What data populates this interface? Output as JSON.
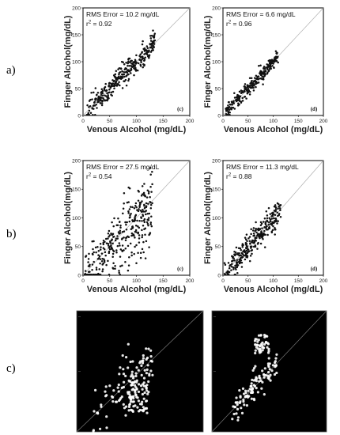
{
  "row_labels": [
    "a)",
    "b)",
    "c)"
  ],
  "colors": {
    "frame": "#000000",
    "marker": "#111111",
    "diagonal": "#b0b0b0",
    "dark_bg": "#000000",
    "dark_marker": "#ffffff"
  },
  "chart_data": [
    {
      "type": "scatter",
      "row": "a)",
      "panel_label": "(c)",
      "xlabel": "Venous Alcohol (mg/dL)",
      "ylabel": "Finger Alcohol(mg/dL)",
      "xlim": [
        0,
        200
      ],
      "ylim": [
        0,
        200
      ],
      "xticks": [
        "0",
        "50",
        "100",
        "150",
        "200"
      ],
      "yticks": [
        "0",
        "50",
        "100",
        "150",
        "200"
      ],
      "rms_label": "RMS Error = 10.2 mg/dL",
      "r_label": "r",
      "r_sup": "2",
      "r_value": " = 0.92",
      "reference_line": "y = x",
      "point_count": 320,
      "x_range": [
        5,
        135
      ],
      "spread": 10
    },
    {
      "type": "scatter",
      "row": "a)",
      "panel_label": "(d)",
      "xlabel": "Venous Alcohol (mg/dL)",
      "ylabel": "Finger Alcohol(mg/dL)",
      "xlim": [
        0,
        200
      ],
      "ylim": [
        0,
        200
      ],
      "xticks": [
        "0",
        "50",
        "100",
        "150",
        "200"
      ],
      "yticks": [
        "0",
        "50",
        "100",
        "150",
        "200"
      ],
      "rms_label": "RMS Error = 6.6 mg/dL",
      "r_label": "r",
      "r_sup": "2",
      "r_value": " = 0.96",
      "reference_line": "y = x",
      "point_count": 260,
      "x_range": [
        5,
        110
      ],
      "spread": 6.5
    },
    {
      "type": "scatter",
      "row": "b)",
      "panel_label": "(c)",
      "xlabel": "Venous Alcohol (mg/dL)",
      "ylabel": "Finger Alcohol(mg/dL)",
      "xlim": [
        0,
        200
      ],
      "ylim": [
        0,
        200
      ],
      "xticks": [
        "0",
        "50",
        "100",
        "150",
        "200"
      ],
      "yticks": [
        "0",
        "50",
        "100",
        "150",
        "200"
      ],
      "rms_label": "RMS Error = 27.5 mg/dL",
      "r_label": "r",
      "r_sup": "2",
      "r_value": " = 0.54",
      "reference_line": "y = x",
      "point_count": 340,
      "x_range": [
        3,
        130
      ],
      "spread": 26
    },
    {
      "type": "scatter",
      "row": "b)",
      "panel_label": "(d)",
      "xlabel": "Venous Alcohol (mg/dL)",
      "ylabel": "Finger Alcohol(mg/dL)",
      "xlim": [
        0,
        200
      ],
      "ylim": [
        0,
        200
      ],
      "xticks": [
        "0",
        "50",
        "100",
        "150",
        "200"
      ],
      "yticks": [
        "0",
        "50",
        "100",
        "150",
        "200"
      ],
      "rms_label": "RMS Error = 11.3 mg/dL",
      "r_label": "r",
      "r_sup": "2",
      "r_value": " = 0.88",
      "reference_line": "y = x",
      "point_count": 300,
      "x_range": [
        3,
        115
      ],
      "spread": 11
    },
    {
      "type": "scatter",
      "row": "c)",
      "style": "dark",
      "reference_line": "y = x",
      "point_count": 170,
      "x_range": [
        25,
        120
      ],
      "spread": 22
    },
    {
      "type": "scatter",
      "row": "c)",
      "style": "dark",
      "reference_line": "y = x",
      "point_count": 150,
      "x_range": [
        35,
        115
      ],
      "spread": 12
    }
  ]
}
